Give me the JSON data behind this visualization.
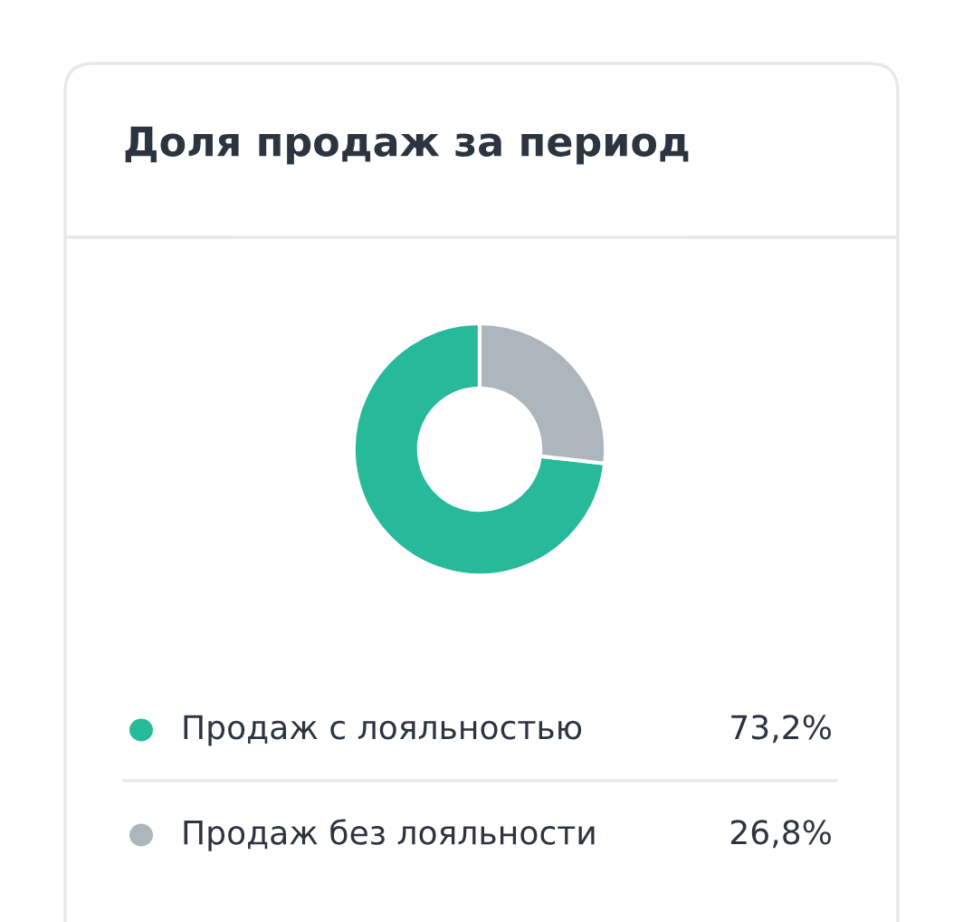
{
  "chart_data": {
    "type": "donut",
    "title": "Доля продаж за период",
    "categories": [
      "Продаж с лояльностью",
      "Продаж без лояльности"
    ],
    "values": [
      73.2,
      26.8
    ],
    "colors": [
      "#26b99a",
      "#adb5bd"
    ],
    "value_labels": [
      "73,2%",
      "26,8%"
    ],
    "legend": "bottom"
  }
}
